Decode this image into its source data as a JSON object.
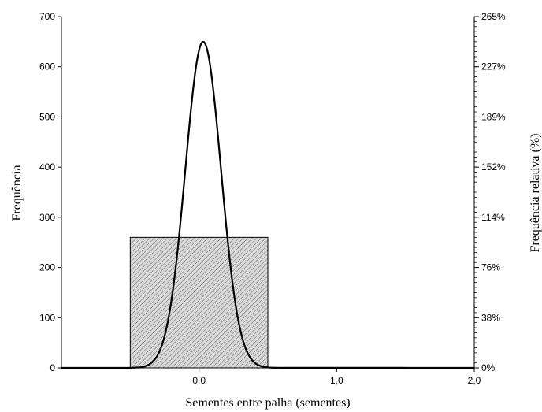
{
  "chart_data": {
    "type": "bar",
    "xlabel": "Sementes entre palha (sementes)",
    "ylabel": "Frequência",
    "y2label": "Frequência relativa (%)",
    "xlim": [
      -1.0,
      2.0
    ],
    "ylim": [
      0,
      700
    ],
    "x_ticks": [
      {
        "value": 0.0,
        "label": "0,0"
      },
      {
        "value": 1.0,
        "label": "1,0"
      },
      {
        "value": 2.0,
        "label": "2,0"
      }
    ],
    "y_ticks": [
      0,
      100,
      200,
      300,
      400,
      500,
      600,
      700
    ],
    "y2_ticks": [
      {
        "value": 0,
        "label": "0%"
      },
      {
        "value": 100,
        "label": "38%"
      },
      {
        "value": 200,
        "label": "76%"
      },
      {
        "value": 300,
        "label": "114%"
      },
      {
        "value": 400,
        "label": "152%"
      },
      {
        "value": 500,
        "label": "189%"
      },
      {
        "value": 600,
        "label": "227%"
      },
      {
        "value": 700,
        "label": "265%"
      }
    ],
    "bars": [
      {
        "x0": -0.5,
        "x1": 0.5,
        "value": 260
      },
      {
        "x0": 0.5,
        "x1": 1.5,
        "value": 1
      }
    ],
    "fit_curve": {
      "type": "normal",
      "mean": 0.03,
      "sd": 0.13,
      "peak": 650
    },
    "grid": false,
    "bar_fill": "#d8d8d8",
    "bar_hatch": "#555555",
    "line_color": "#000000"
  }
}
